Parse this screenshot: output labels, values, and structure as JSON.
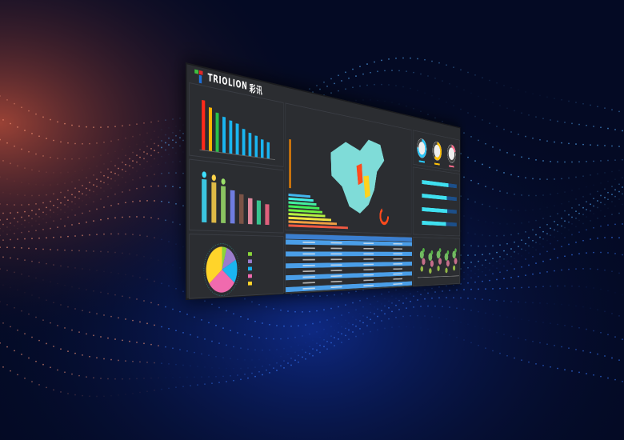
{
  "brand": {
    "name": "TRIOLION",
    "name_cn": "彩讯",
    "logo_colors": [
      "#3fbf3f",
      "#e02828",
      "#1e6fd9"
    ]
  },
  "colors": {
    "screen": "#2b2d31",
    "accent_blue": "#4a9ee8",
    "map": "#7fdcd8",
    "highlight_red": "#ff4a1c",
    "highlight_yellow": "#ffd21f"
  },
  "bar_chart_1": {
    "values": [
      1.0,
      0.88,
      0.8,
      0.74,
      0.69,
      0.65,
      0.56,
      0.5,
      0.46,
      0.4,
      0.36
    ],
    "colors": [
      "#ff2a1a",
      "#ffb400",
      "#2bc24a",
      "#1ab5f0",
      "#1ab5f0",
      "#1ab5f0",
      "#1ab5f0",
      "#1ab5f0",
      "#1ab5f0",
      "#1ab5f0",
      "#1ab5f0"
    ]
  },
  "bar_chart_2": {
    "values": [
      1.0,
      0.95,
      0.88,
      0.8,
      0.72,
      0.64,
      0.6,
      0.52
    ],
    "colors": [
      "#3ee0ff",
      "#ffd34a",
      "#9be06a",
      "#7b8cff",
      "#8a5a4a",
      "#ff9ab0",
      "#3be0a0",
      "#ff6a8a"
    ]
  },
  "pie": {
    "values": [
      0.05,
      0.13,
      0.17,
      0.3,
      0.35
    ],
    "colors": [
      "#8ad43a",
      "#9b7ccc",
      "#1ab5f0",
      "#f06aae",
      "#ffd42a"
    ]
  },
  "gauges": [
    {
      "value": 0.75,
      "color": "#29c5f6"
    },
    {
      "value": 0.6,
      "color": "#ffc107"
    },
    {
      "value": 0.2,
      "color": "#ff6a8a"
    }
  ],
  "hbars": [
    0.75,
    0.7,
    0.72,
    0.68
  ],
  "map_hbars": [
    0.35,
    0.4,
    0.45,
    0.5,
    0.55,
    0.6,
    0.7,
    0.8,
    1.0
  ],
  "table": {
    "rows": 9
  }
}
